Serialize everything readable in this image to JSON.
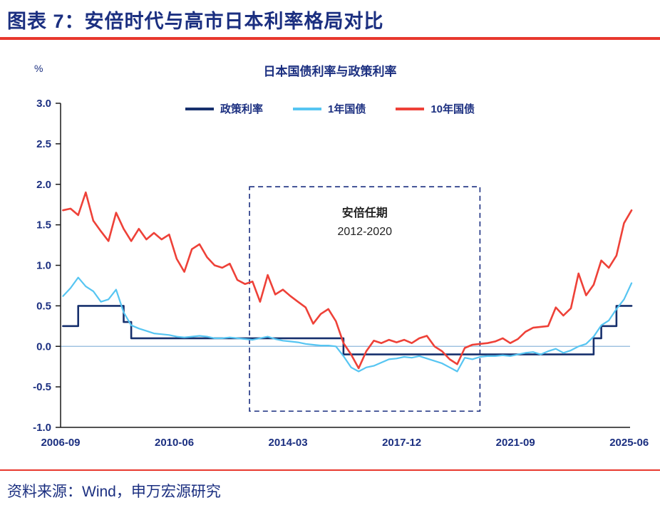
{
  "header": {
    "title": "图表 7：安倍时代与高市日本利率格局对比"
  },
  "footer": {
    "source": "资料来源：Wind，申万宏源研究"
  },
  "colors": {
    "title_navy": "#1b2f80",
    "rule_red": "#e8382e",
    "axis": "#1a1a1a",
    "zero_line": "#8fb8dc",
    "tick_label": "#1b2f80"
  },
  "chart_data": {
    "type": "line",
    "title": "日本国债利率与政策利率",
    "y_unit": "%",
    "xlabel": "",
    "ylabel": "%",
    "xlim": [
      2006.67,
      2025.45
    ],
    "ylim": [
      -1.0,
      3.0
    ],
    "grid": false,
    "legend_position": "top-center",
    "y_ticks": [
      3.0,
      2.5,
      2.0,
      1.5,
      1.0,
      0.5,
      0.0,
      -0.5,
      -1.0
    ],
    "y_tick_labels": [
      "3.0",
      "2.5",
      "2.0",
      "1.5",
      "1.0",
      "0.5",
      "0.0",
      "-0.5",
      "-1.0"
    ],
    "x_ticks": [
      2006.67,
      2010.42,
      2014.17,
      2017.92,
      2021.67,
      2025.42
    ],
    "x_tick_labels": [
      "2006-09",
      "2010-06",
      "2014-03",
      "2017-12",
      "2021-09",
      "2025-06"
    ],
    "x": [
      2006.75,
      2007.0,
      2007.25,
      2007.5,
      2007.75,
      2008.0,
      2008.25,
      2008.5,
      2008.75,
      2009.0,
      2009.25,
      2009.5,
      2009.75,
      2010.0,
      2010.25,
      2010.5,
      2010.75,
      2011.0,
      2011.25,
      2011.5,
      2011.75,
      2012.0,
      2012.25,
      2012.5,
      2012.75,
      2013.0,
      2013.25,
      2013.5,
      2013.75,
      2014.0,
      2014.25,
      2014.5,
      2014.75,
      2015.0,
      2015.25,
      2015.5,
      2015.75,
      2016.0,
      2016.25,
      2016.5,
      2016.75,
      2017.0,
      2017.25,
      2017.5,
      2017.75,
      2018.0,
      2018.25,
      2018.5,
      2018.75,
      2019.0,
      2019.25,
      2019.5,
      2019.75,
      2020.0,
      2020.25,
      2020.5,
      2020.75,
      2021.0,
      2021.25,
      2021.5,
      2021.75,
      2022.0,
      2022.25,
      2022.5,
      2022.75,
      2023.0,
      2023.25,
      2023.5,
      2023.75,
      2024.0,
      2024.25,
      2024.5,
      2024.75,
      2025.0,
      2025.25,
      2025.5
    ],
    "series": [
      {
        "name": "政策利率",
        "color": "#17306d",
        "width": 2.6,
        "step": true,
        "values": [
          0.25,
          0.25,
          0.5,
          0.5,
          0.5,
          0.5,
          0.5,
          0.5,
          0.3,
          0.1,
          0.1,
          0.1,
          0.1,
          0.1,
          0.1,
          0.1,
          0.1,
          0.1,
          0.1,
          0.1,
          0.1,
          0.1,
          0.1,
          0.1,
          0.1,
          0.1,
          0.1,
          0.1,
          0.1,
          0.1,
          0.1,
          0.1,
          0.1,
          0.1,
          0.1,
          0.1,
          0.1,
          -0.1,
          -0.1,
          -0.1,
          -0.1,
          -0.1,
          -0.1,
          -0.1,
          -0.1,
          -0.1,
          -0.1,
          -0.1,
          -0.1,
          -0.1,
          -0.1,
          -0.1,
          -0.1,
          -0.1,
          -0.1,
          -0.1,
          -0.1,
          -0.1,
          -0.1,
          -0.1,
          -0.1,
          -0.1,
          -0.1,
          -0.1,
          -0.1,
          -0.1,
          -0.1,
          -0.1,
          -0.1,
          -0.1,
          0.1,
          0.25,
          0.25,
          0.5,
          0.5,
          0.5
        ]
      },
      {
        "name": "1年国债",
        "color": "#56c5f2",
        "width": 2.2,
        "step": false,
        "values": [
          0.62,
          0.72,
          0.85,
          0.74,
          0.68,
          0.55,
          0.58,
          0.7,
          0.42,
          0.26,
          0.22,
          0.19,
          0.16,
          0.15,
          0.14,
          0.12,
          0.11,
          0.12,
          0.13,
          0.12,
          0.1,
          0.1,
          0.11,
          0.1,
          0.09,
          0.08,
          0.1,
          0.12,
          0.09,
          0.07,
          0.06,
          0.05,
          0.03,
          0.02,
          0.01,
          0.01,
          0.0,
          -0.12,
          -0.26,
          -0.31,
          -0.26,
          -0.24,
          -0.2,
          -0.16,
          -0.15,
          -0.13,
          -0.14,
          -0.12,
          -0.15,
          -0.18,
          -0.21,
          -0.26,
          -0.31,
          -0.14,
          -0.16,
          -0.13,
          -0.12,
          -0.12,
          -0.11,
          -0.12,
          -0.1,
          -0.08,
          -0.07,
          -0.1,
          -0.06,
          -0.03,
          -0.08,
          -0.05,
          0.0,
          0.03,
          0.12,
          0.26,
          0.32,
          0.46,
          0.58,
          0.78
        ]
      },
      {
        "name": "10年国债",
        "color": "#ee4138",
        "width": 2.6,
        "step": false,
        "values": [
          1.68,
          1.7,
          1.62,
          1.9,
          1.55,
          1.42,
          1.3,
          1.65,
          1.45,
          1.3,
          1.45,
          1.32,
          1.4,
          1.32,
          1.38,
          1.08,
          0.92,
          1.2,
          1.26,
          1.1,
          1.0,
          0.97,
          1.02,
          0.82,
          0.77,
          0.8,
          0.55,
          0.88,
          0.64,
          0.7,
          0.62,
          0.55,
          0.48,
          0.28,
          0.4,
          0.46,
          0.31,
          0.04,
          -0.1,
          -0.27,
          -0.06,
          0.07,
          0.04,
          0.08,
          0.05,
          0.08,
          0.04,
          0.1,
          0.13,
          0.0,
          -0.06,
          -0.16,
          -0.22,
          -0.02,
          0.02,
          0.03,
          0.04,
          0.06,
          0.1,
          0.04,
          0.09,
          0.18,
          0.23,
          0.24,
          0.25,
          0.48,
          0.38,
          0.47,
          0.9,
          0.63,
          0.76,
          1.06,
          0.97,
          1.12,
          1.52,
          1.68
        ]
      }
    ],
    "annotation": {
      "line1": "安倍任期",
      "line2": "2012-2020",
      "x_range": [
        2012.9,
        2020.5
      ],
      "y_range": [
        -0.8,
        1.97
      ],
      "border_color": "#1b2f80",
      "text_color": "#222222"
    }
  }
}
